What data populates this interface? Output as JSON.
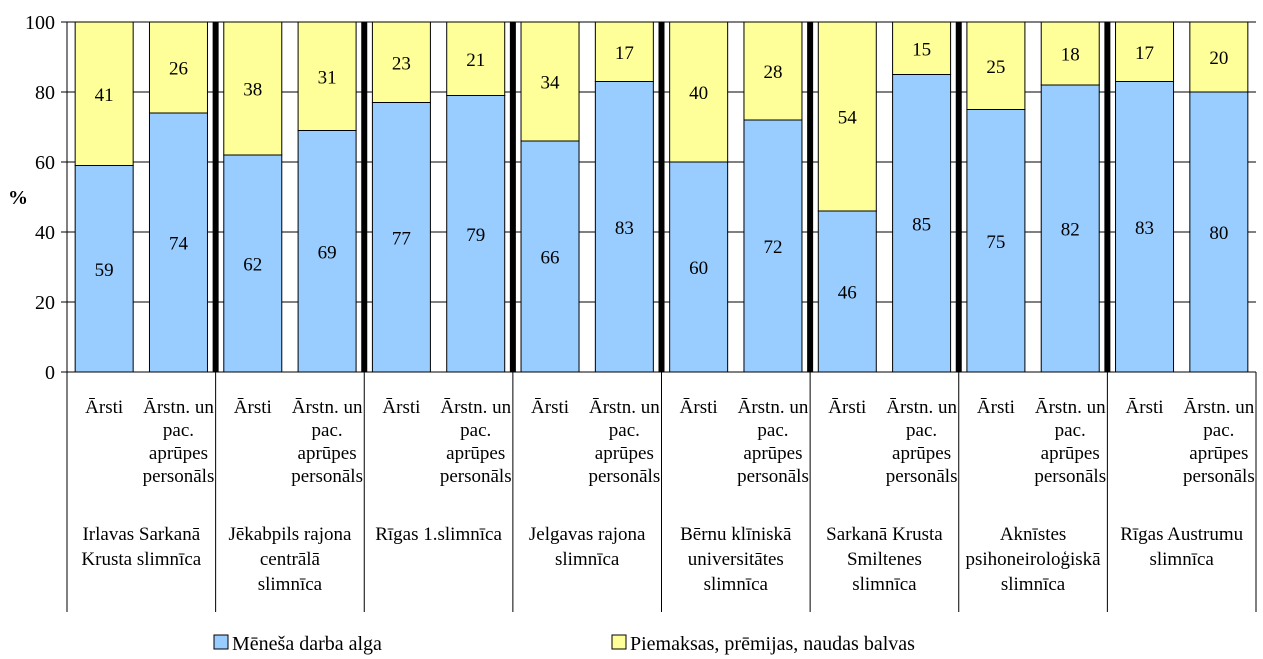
{
  "chart_data": {
    "type": "bar",
    "stacked": true,
    "ylabel": "%",
    "ylim": [
      0,
      100
    ],
    "yticks": [
      0,
      20,
      40,
      60,
      80,
      100
    ],
    "grid": true,
    "legend_position": "bottom",
    "groups": [
      {
        "label": "Irlavas Sarkanā Krusta slimnīca",
        "label_lines": [
          "Irlavas Sarkanā",
          "Krusta slimnīca"
        ]
      },
      {
        "label": "Jēkabpils rajona centrālā slimnīca",
        "label_lines": [
          "Jēkabpils rajona",
          "centrālā",
          "slimnīca"
        ]
      },
      {
        "label": "Rīgas 1.slimnīca",
        "label_lines": [
          "Rīgas 1.slimnīca"
        ]
      },
      {
        "label": "Jelgavas rajona slimnīca",
        "label_lines": [
          "Jelgavas rajona",
          "slimnīca"
        ]
      },
      {
        "label": "Bērnu klīniskā universitātes slimnīca",
        "label_lines": [
          "Bērnu klīniskā",
          "universitātes",
          "slimnīca"
        ]
      },
      {
        "label": "Sarkanā Krusta Smiltenes slimnīca",
        "label_lines": [
          "Sarkanā Krusta",
          "Smiltenes",
          "slimnīca"
        ]
      },
      {
        "label": "Aknīstes psihoneiroloģiskā slimnīca",
        "label_lines": [
          "Aknīstes",
          "psihoneiroloģiskā",
          "slimnīca"
        ]
      },
      {
        "label": "Rīgas Austrumu slimnīca",
        "label_lines": [
          "Rīgas Austrumu",
          "slimnīca"
        ]
      }
    ],
    "categories": [
      "Ārsti",
      "Ārstn. un pac. aprūpes personāls",
      "Ārsti",
      "Ārstn. un pac. aprūpes personāls",
      "Ārsti",
      "Ārstn. un pac. aprūpes personāls",
      "Ārsti",
      "Ārstn. un pac. aprūpes personāls",
      "Ārsti",
      "Ārstn. un pac. aprūpes personāls",
      "Ārsti",
      "Ārstn. un pac. aprūpes personāls",
      "Ārsti",
      "Ārstn. un pac. aprūpes personāls",
      "Ārsti",
      "Ārstn. un pac. aprūpes personāls"
    ],
    "category_label_lines": {
      "doctors": [
        "Ārsti"
      ],
      "staff": [
        "Ārstn. un",
        "pac.",
        "aprūpes",
        "personāls"
      ]
    },
    "series": [
      {
        "name": "Mēneša darba alga",
        "color": "#99ccff",
        "values": [
          59,
          74,
          62,
          69,
          77,
          79,
          66,
          83,
          60,
          72,
          46,
          85,
          75,
          82,
          83,
          80
        ]
      },
      {
        "name": "Piemaksas, prēmijas, naudas balvas",
        "color": "#ffff99",
        "values": [
          41,
          26,
          38,
          31,
          23,
          21,
          34,
          17,
          40,
          28,
          54,
          15,
          25,
          18,
          17,
          20
        ]
      }
    ]
  }
}
